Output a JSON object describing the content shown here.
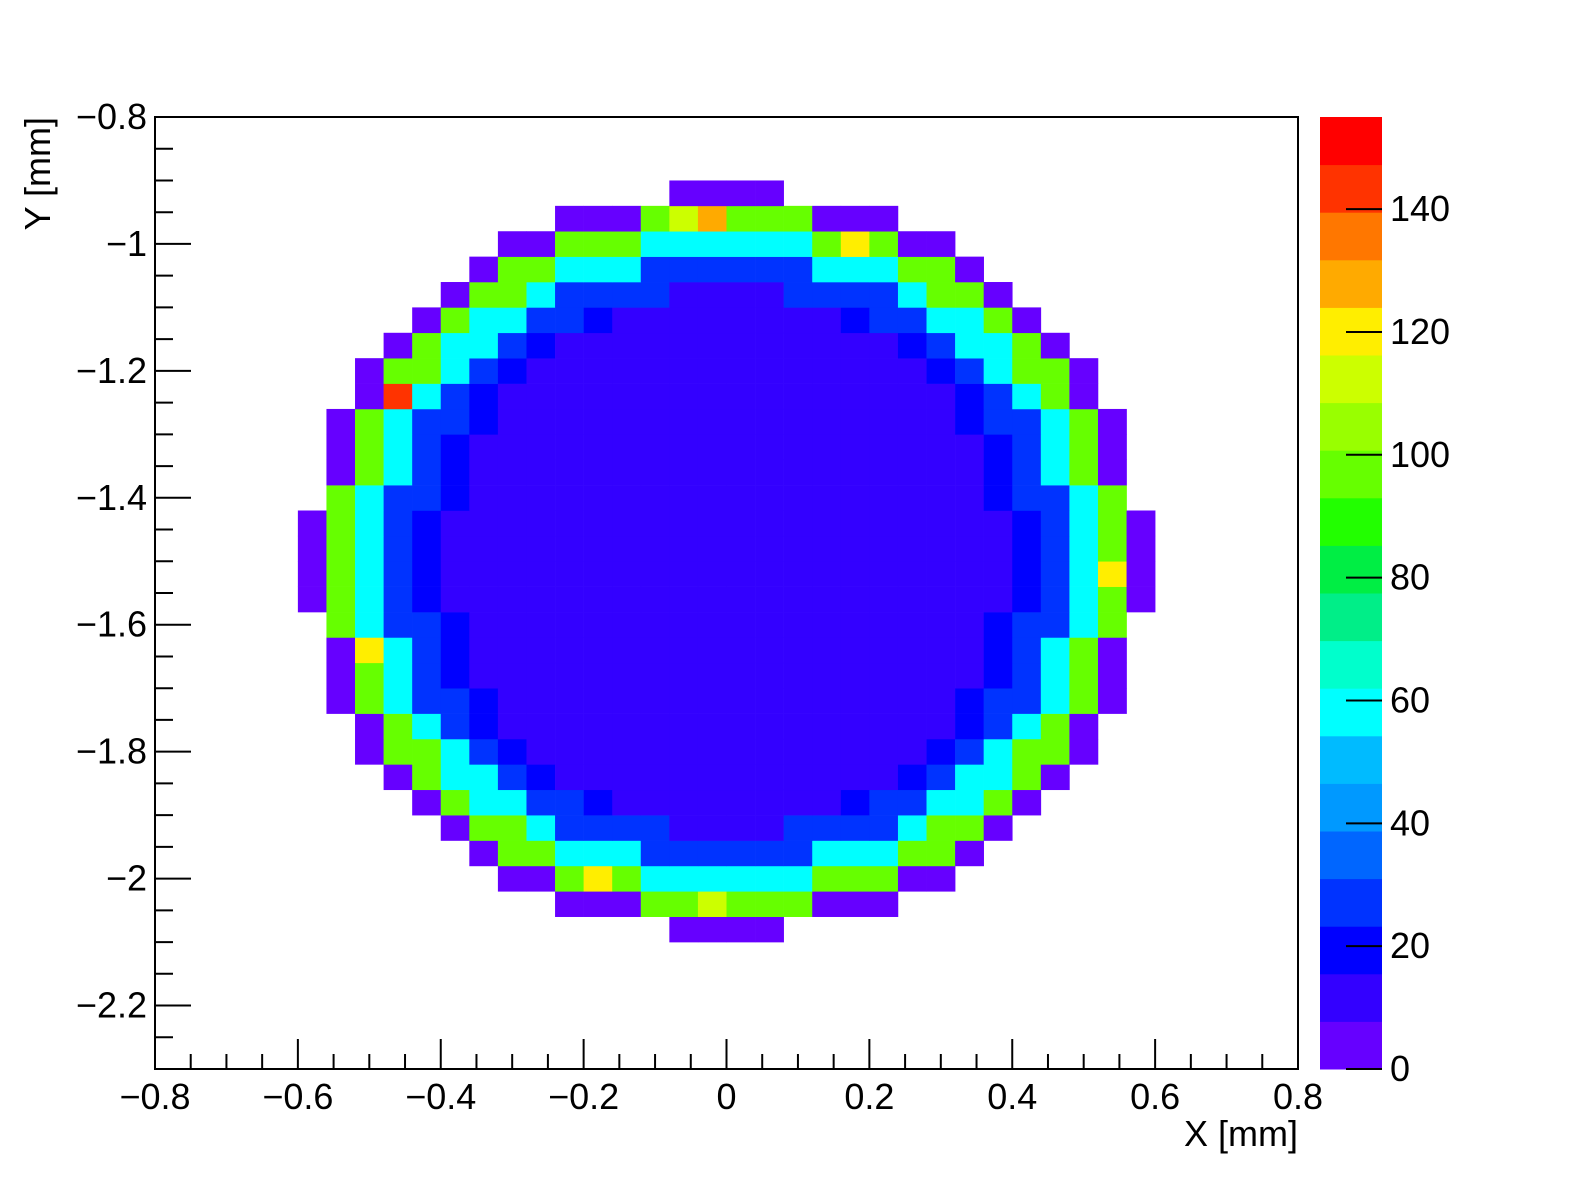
{
  "chart_data": {
    "type": "heatmap",
    "x_label": "X [mm]",
    "y_label": "Y [mm]",
    "xlim": [
      -0.8,
      0.8
    ],
    "ylim": [
      -2.3,
      -0.8
    ],
    "zlim": [
      0,
      155
    ],
    "xticks": [
      {
        "value": -0.8,
        "label": "−0.8"
      },
      {
        "value": -0.6,
        "label": "−0.6"
      },
      {
        "value": -0.4,
        "label": "−0.4"
      },
      {
        "value": -0.2,
        "label": "−0.2"
      },
      0,
      0.2,
      0.4,
      0.6,
      0.8
    ],
    "yticks": [
      {
        "value": -2.2,
        "label": "−2.2"
      },
      {
        "value": -2,
        "label": "−2"
      },
      {
        "value": -1.8,
        "label": "−1.8"
      },
      {
        "value": -1.6,
        "label": "−1.6"
      },
      {
        "value": -1.4,
        "label": "−1.4"
      },
      {
        "value": -1.2,
        "label": "−1.2"
      },
      {
        "value": -1,
        "label": "−1"
      },
      {
        "value": -0.8,
        "label": "−0.8"
      }
    ],
    "xminorticks": [
      -0.75,
      -0.7,
      -0.65,
      -0.55,
      -0.5,
      -0.45,
      -0.35,
      -0.3,
      -0.25,
      -0.15,
      -0.1,
      -0.05,
      0.05,
      0.1,
      0.15,
      0.25,
      0.3,
      0.35,
      0.45,
      0.5,
      0.55,
      0.65,
      0.7,
      0.75
    ],
    "yminorticks": [
      -0.85,
      -0.9,
      -0.95,
      -1.05,
      -1.1,
      -1.15,
      -1.25,
      -1.3,
      -1.35,
      -1.45,
      -1.5,
      -1.55,
      -1.65,
      -1.7,
      -1.75,
      -1.85,
      -1.9,
      -1.95,
      -2.05,
      -2.1,
      -2.15,
      -2.25
    ],
    "zticks": [
      0,
      20,
      40,
      60,
      80,
      100,
      120,
      140
    ],
    "palette": [
      "#6600ff",
      "#3300ff",
      "#0000ff",
      "#0033ff",
      "#0066ff",
      "#0099ff",
      "#00bbff",
      "#00ffff",
      "#00ffcc",
      "#00ee88",
      "#00ee44",
      "#22ff00",
      "#66ff00",
      "#99ff00",
      "#ccff00",
      "#ffee00",
      "#ffaa00",
      "#ff7700",
      "#ff3300",
      "#ff0000"
    ],
    "xbins": [
      -0.6,
      -0.56,
      -0.52,
      -0.48,
      -0.44,
      -0.4,
      -0.36,
      -0.32,
      -0.28,
      -0.24,
      -0.2,
      -0.16,
      -0.12,
      -0.08,
      -0.04,
      0,
      0.04,
      0.08,
      0.12,
      0.16,
      0.2,
      0.24,
      0.28,
      0.32,
      0.36,
      0.4,
      0.44,
      0.48,
      0.52,
      0.56,
      0.6
    ],
    "ybins": [
      -2.1,
      -2.06,
      -2.02,
      -1.98,
      -1.94,
      -1.9,
      -1.86,
      -1.82,
      -1.78,
      -1.74,
      -1.7,
      -1.66,
      -1.62,
      -1.58,
      -1.54,
      -1.5,
      -1.46,
      -1.42,
      -1.38,
      -1.34,
      -1.3,
      -1.26,
      -1.22,
      -1.18,
      -1.14,
      -1.1,
      -1.06,
      -1.02,
      -0.98,
      -0.94,
      -0.9
    ],
    "values": [
      [
        null,
        null,
        null,
        null,
        null,
        null,
        null,
        null,
        null,
        null,
        null,
        null,
        null,
        6,
        6,
        6,
        6,
        null,
        null,
        null,
        null,
        null,
        null,
        null,
        null,
        null,
        null,
        null,
        null,
        null
      ],
      [
        null,
        null,
        null,
        null,
        null,
        null,
        null,
        null,
        null,
        6,
        6,
        6,
        100,
        100,
        110,
        95,
        100,
        100,
        6,
        6,
        6,
        null,
        null,
        null,
        null,
        null,
        null,
        null,
        null,
        null
      ],
      [
        null,
        null,
        null,
        null,
        null,
        null,
        null,
        6,
        6,
        100,
        120,
        100,
        55,
        55,
        55,
        55,
        55,
        55,
        100,
        100,
        100,
        6,
        6,
        null,
        null,
        null,
        null,
        null,
        null,
        null
      ],
      [
        null,
        null,
        null,
        null,
        null,
        null,
        6,
        100,
        100,
        55,
        55,
        55,
        28,
        28,
        28,
        28,
        28,
        28,
        55,
        55,
        55,
        100,
        100,
        6,
        null,
        null,
        null,
        null,
        null,
        null
      ],
      [
        null,
        null,
        null,
        null,
        null,
        6,
        100,
        100,
        55,
        28,
        28,
        28,
        28,
        14,
        14,
        14,
        14,
        28,
        28,
        28,
        28,
        55,
        100,
        100,
        6,
        null,
        null,
        null,
        null,
        null
      ],
      [
        null,
        null,
        null,
        null,
        6,
        100,
        55,
        55,
        28,
        28,
        18,
        14,
        12,
        12,
        10,
        10,
        12,
        12,
        14,
        18,
        28,
        28,
        55,
        55,
        100,
        6,
        null,
        null,
        null,
        null
      ],
      [
        null,
        null,
        null,
        6,
        100,
        55,
        55,
        28,
        18,
        14,
        12,
        10,
        10,
        10,
        10,
        10,
        10,
        10,
        10,
        12,
        14,
        18,
        28,
        55,
        55,
        100,
        6,
        null,
        null,
        null
      ],
      [
        null,
        null,
        6,
        100,
        100,
        55,
        28,
        18,
        14,
        12,
        10,
        10,
        10,
        10,
        10,
        10,
        10,
        10,
        10,
        10,
        12,
        14,
        18,
        28,
        55,
        100,
        100,
        6,
        null,
        null
      ],
      [
        null,
        null,
        6,
        100,
        55,
        28,
        18,
        14,
        12,
        10,
        10,
        10,
        10,
        10,
        10,
        10,
        10,
        10,
        10,
        10,
        10,
        12,
        14,
        18,
        28,
        55,
        100,
        6,
        null,
        null
      ],
      [
        null,
        6,
        100,
        55,
        28,
        28,
        18,
        14,
        12,
        10,
        10,
        10,
        10,
        10,
        10,
        10,
        10,
        10,
        10,
        10,
        10,
        12,
        14,
        18,
        28,
        28,
        55,
        100,
        6,
        null
      ],
      [
        null,
        6,
        100,
        55,
        28,
        18,
        14,
        12,
        10,
        10,
        10,
        10,
        10,
        10,
        10,
        10,
        10,
        10,
        10,
        10,
        10,
        10,
        12,
        14,
        18,
        28,
        55,
        100,
        6,
        null
      ],
      [
        null,
        6,
        120,
        55,
        28,
        18,
        14,
        12,
        10,
        10,
        10,
        10,
        10,
        10,
        10,
        10,
        10,
        10,
        10,
        10,
        10,
        10,
        12,
        14,
        18,
        28,
        55,
        100,
        6,
        null
      ],
      [
        null,
        100,
        55,
        28,
        28,
        18,
        14,
        12,
        10,
        10,
        10,
        10,
        10,
        10,
        10,
        10,
        10,
        10,
        10,
        10,
        10,
        10,
        12,
        14,
        18,
        28,
        28,
        55,
        100,
        null
      ],
      [
        6,
        100,
        55,
        28,
        18,
        14,
        12,
        10,
        10,
        10,
        10,
        10,
        10,
        10,
        10,
        10,
        10,
        10,
        10,
        10,
        10,
        10,
        10,
        12,
        14,
        18,
        28,
        55,
        100,
        6
      ],
      [
        6,
        100,
        55,
        28,
        18,
        14,
        12,
        10,
        10,
        10,
        10,
        10,
        10,
        10,
        10,
        10,
        10,
        10,
        10,
        10,
        10,
        10,
        10,
        12,
        14,
        18,
        28,
        55,
        120,
        6
      ],
      [
        6,
        100,
        55,
        28,
        18,
        14,
        12,
        10,
        10,
        10,
        10,
        10,
        10,
        10,
        10,
        10,
        10,
        10,
        10,
        10,
        10,
        10,
        10,
        12,
        14,
        18,
        28,
        55,
        100,
        6
      ],
      [
        6,
        100,
        55,
        28,
        18,
        14,
        12,
        10,
        10,
        10,
        10,
        10,
        10,
        10,
        10,
        10,
        10,
        10,
        10,
        10,
        10,
        10,
        10,
        12,
        14,
        18,
        28,
        55,
        100,
        6
      ],
      [
        null,
        100,
        55,
        28,
        28,
        18,
        14,
        12,
        10,
        10,
        10,
        10,
        10,
        10,
        10,
        10,
        10,
        10,
        10,
        10,
        10,
        10,
        12,
        14,
        18,
        28,
        28,
        55,
        100,
        null
      ],
      [
        null,
        6,
        100,
        55,
        28,
        18,
        14,
        12,
        10,
        10,
        10,
        10,
        10,
        10,
        10,
        10,
        10,
        10,
        10,
        10,
        10,
        10,
        12,
        14,
        18,
        28,
        55,
        100,
        6,
        null
      ],
      [
        null,
        6,
        100,
        55,
        28,
        18,
        14,
        12,
        10,
        10,
        10,
        10,
        10,
        10,
        10,
        10,
        10,
        10,
        10,
        10,
        10,
        10,
        12,
        14,
        18,
        28,
        55,
        100,
        6,
        null
      ],
      [
        null,
        6,
        100,
        55,
        28,
        28,
        18,
        14,
        12,
        10,
        10,
        10,
        10,
        10,
        10,
        10,
        10,
        10,
        10,
        10,
        10,
        12,
        14,
        18,
        28,
        28,
        55,
        100,
        6,
        null
      ],
      [
        null,
        null,
        6,
        140,
        55,
        28,
        18,
        14,
        12,
        10,
        10,
        10,
        10,
        10,
        10,
        10,
        10,
        10,
        10,
        10,
        10,
        12,
        14,
        18,
        28,
        55,
        100,
        6,
        null,
        null
      ],
      [
        null,
        null,
        6,
        100,
        100,
        55,
        28,
        18,
        14,
        12,
        10,
        10,
        10,
        10,
        10,
        10,
        10,
        10,
        10,
        10,
        12,
        14,
        18,
        28,
        55,
        100,
        100,
        6,
        null,
        null
      ],
      [
        null,
        null,
        null,
        6,
        100,
        55,
        55,
        28,
        18,
        14,
        12,
        10,
        10,
        10,
        10,
        10,
        10,
        10,
        10,
        12,
        14,
        18,
        28,
        55,
        55,
        100,
        6,
        null,
        null,
        null
      ],
      [
        null,
        null,
        null,
        null,
        6,
        100,
        55,
        55,
        28,
        28,
        18,
        14,
        12,
        12,
        10,
        10,
        12,
        12,
        14,
        18,
        28,
        28,
        55,
        55,
        100,
        6,
        null,
        null,
        null,
        null
      ],
      [
        null,
        null,
        null,
        null,
        null,
        6,
        100,
        100,
        55,
        28,
        28,
        28,
        28,
        14,
        14,
        14,
        14,
        28,
        28,
        28,
        28,
        55,
        100,
        100,
        6,
        null,
        null,
        null,
        null,
        null
      ],
      [
        null,
        null,
        null,
        null,
        null,
        null,
        6,
        100,
        100,
        55,
        55,
        55,
        28,
        28,
        28,
        28,
        28,
        28,
        55,
        55,
        55,
        100,
        100,
        6,
        null,
        null,
        null,
        null,
        null,
        null
      ],
      [
        null,
        null,
        null,
        null,
        null,
        null,
        null,
        6,
        6,
        100,
        100,
        100,
        55,
        55,
        55,
        55,
        55,
        55,
        100,
        120,
        100,
        6,
        6,
        null,
        null,
        null,
        null,
        null,
        null,
        null
      ],
      [
        null,
        null,
        null,
        null,
        null,
        null,
        null,
        null,
        null,
        6,
        6,
        6,
        100,
        110,
        130,
        100,
        100,
        100,
        6,
        6,
        6,
        null,
        null,
        null,
        null,
        null,
        null,
        null,
        null,
        null
      ],
      [
        null,
        null,
        null,
        null,
        null,
        null,
        null,
        null,
        null,
        null,
        null,
        null,
        null,
        6,
        6,
        6,
        6,
        null,
        null,
        null,
        null,
        null,
        null,
        null,
        null,
        null,
        null,
        null,
        null,
        null
      ]
    ]
  }
}
